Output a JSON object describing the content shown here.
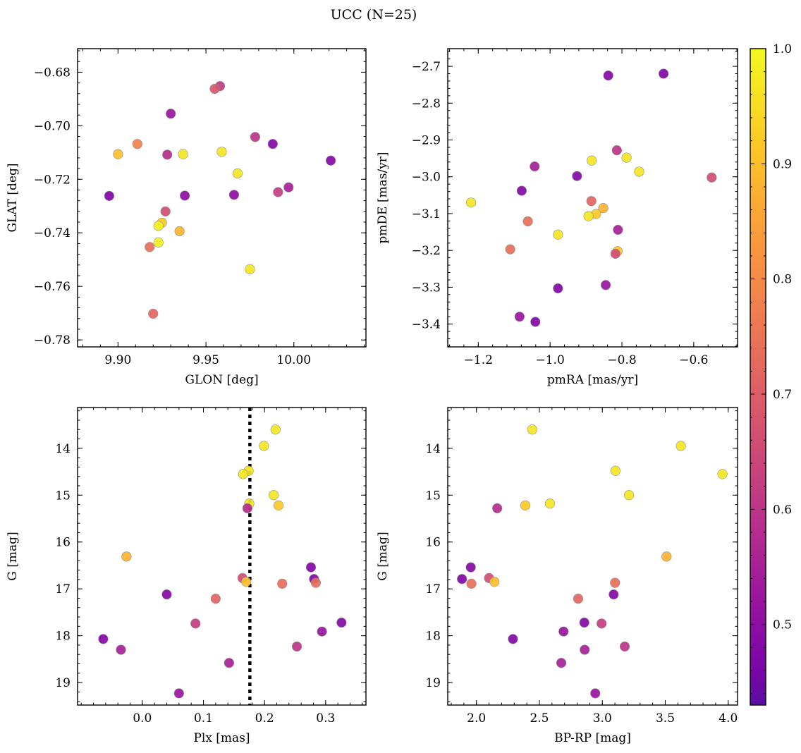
{
  "figure": {
    "title": "UCC (N=25)"
  },
  "chart_data": [
    {
      "type": "scatter",
      "xlabel": "GLON [deg]",
      "ylabel": "GLAT [deg]",
      "xlim": [
        9.877,
        10.041
      ],
      "ylim": [
        -0.7826,
        -0.6712
      ],
      "xticks": [
        9.9,
        9.95,
        10.0
      ],
      "xtick_labels": [
        "9.90",
        "9.95",
        "10.00"
      ],
      "yticks": [
        -0.68,
        -0.7,
        -0.72,
        -0.74,
        -0.76,
        -0.78
      ],
      "ytick_labels": [
        "−0.68",
        "−0.70",
        "−0.72",
        "−0.74",
        "−0.76",
        "−0.78"
      ],
      "y_inverted": false,
      "points": [
        {
          "x": 9.958,
          "y": -0.6852,
          "c": 0.62
        },
        {
          "x": 9.955,
          "y": -0.6862,
          "c": 0.68
        },
        {
          "x": 9.93,
          "y": -0.6955,
          "c": 0.52
        },
        {
          "x": 9.978,
          "y": -0.7042,
          "c": 0.6
        },
        {
          "x": 9.911,
          "y": -0.7068,
          "c": 0.78
        },
        {
          "x": 9.988,
          "y": -0.7068,
          "c": 0.48
        },
        {
          "x": 9.9,
          "y": -0.7106,
          "c": 0.9
        },
        {
          "x": 9.928,
          "y": -0.7108,
          "c": 0.58
        },
        {
          "x": 9.937,
          "y": -0.7106,
          "c": 0.97
        },
        {
          "x": 9.959,
          "y": -0.7097,
          "c": 0.97
        },
        {
          "x": 10.021,
          "y": -0.713,
          "c": 0.48
        },
        {
          "x": 9.968,
          "y": -0.7178,
          "c": 0.97
        },
        {
          "x": 9.997,
          "y": -0.723,
          "c": 0.55
        },
        {
          "x": 9.991,
          "y": -0.7248,
          "c": 0.62
        },
        {
          "x": 9.895,
          "y": -0.7262,
          "c": 0.47
        },
        {
          "x": 9.938,
          "y": -0.7261,
          "c": 0.5
        },
        {
          "x": 9.966,
          "y": -0.7258,
          "c": 0.5
        },
        {
          "x": 9.927,
          "y": -0.732,
          "c": 0.66
        },
        {
          "x": 9.925,
          "y": -0.7362,
          "c": 0.92
        },
        {
          "x": 9.923,
          "y": -0.7374,
          "c": 0.99
        },
        {
          "x": 9.935,
          "y": -0.7394,
          "c": 0.88
        },
        {
          "x": 9.923,
          "y": -0.7436,
          "c": 0.99
        },
        {
          "x": 9.918,
          "y": -0.7453,
          "c": 0.74
        },
        {
          "x": 9.975,
          "y": -0.7536,
          "c": 0.97
        },
        {
          "x": 9.92,
          "y": -0.7702,
          "c": 0.72
        }
      ]
    },
    {
      "type": "scatter",
      "xlabel": "pmRA [mas/yr]",
      "ylabel": "pmDE [mas/yr]",
      "xlim": [
        -1.285,
        -0.478
      ],
      "ylim": [
        -3.462,
        -2.652
      ],
      "xticks": [
        -1.2,
        -1.0,
        -0.8,
        -0.6
      ],
      "xtick_labels": [
        "−1.2",
        "−1.0",
        "−0.8",
        "−0.6"
      ],
      "yticks": [
        -2.7,
        -2.8,
        -2.9,
        -3.0,
        -3.1,
        -3.2,
        -3.3,
        -3.4
      ],
      "ytick_labels": [
        "−2.7",
        "−2.8",
        "−2.9",
        "−3.0",
        "−3.1",
        "−3.2",
        "−3.3",
        "−3.4"
      ],
      "y_inverted": false,
      "points": [
        {
          "x": -0.684,
          "y": -2.72,
          "c": 0.48
        },
        {
          "x": -0.838,
          "y": -2.725,
          "c": 0.48
        },
        {
          "x": -0.814,
          "y": -2.928,
          "c": 0.6
        },
        {
          "x": -0.787,
          "y": -2.948,
          "c": 0.97
        },
        {
          "x": -0.884,
          "y": -2.956,
          "c": 0.97
        },
        {
          "x": -1.043,
          "y": -2.972,
          "c": 0.55
        },
        {
          "x": -0.752,
          "y": -2.986,
          "c": 0.97
        },
        {
          "x": -0.925,
          "y": -2.998,
          "c": 0.48
        },
        {
          "x": -0.55,
          "y": -3.002,
          "c": 0.66
        },
        {
          "x": -1.079,
          "y": -3.038,
          "c": 0.48
        },
        {
          "x": -1.22,
          "y": -3.07,
          "c": 0.97
        },
        {
          "x": -0.885,
          "y": -3.066,
          "c": 0.72
        },
        {
          "x": -0.852,
          "y": -3.085,
          "c": 0.88
        },
        {
          "x": -0.872,
          "y": -3.101,
          "c": 0.92
        },
        {
          "x": -0.893,
          "y": -3.107,
          "c": 0.97
        },
        {
          "x": -1.062,
          "y": -3.121,
          "c": 0.74
        },
        {
          "x": -0.811,
          "y": -3.144,
          "c": 0.55
        },
        {
          "x": -0.978,
          "y": -3.157,
          "c": 0.97
        },
        {
          "x": -1.111,
          "y": -3.197,
          "c": 0.74
        },
        {
          "x": -0.812,
          "y": -3.202,
          "c": 0.92
        },
        {
          "x": -0.818,
          "y": -3.209,
          "c": 0.66
        },
        {
          "x": -0.845,
          "y": -3.294,
          "c": 0.52
        },
        {
          "x": -0.978,
          "y": -3.303,
          "c": 0.48
        },
        {
          "x": -1.085,
          "y": -3.38,
          "c": 0.52
        },
        {
          "x": -1.041,
          "y": -3.394,
          "c": 0.48
        }
      ]
    },
    {
      "type": "scatter",
      "xlabel": "Plx [mas]",
      "ylabel": "G [mag]",
      "xlim": [
        -0.106,
        0.366
      ],
      "ylim": [
        19.48,
        13.13
      ],
      "xticks": [
        0.0,
        0.1,
        0.2,
        0.3
      ],
      "xtick_labels": [
        "0.0",
        "0.1",
        "0.2",
        "0.3"
      ],
      "yticks": [
        14,
        15,
        16,
        17,
        18,
        19
      ],
      "ytick_labels": [
        "14",
        "15",
        "16",
        "17",
        "18",
        "19"
      ],
      "y_inverted": true,
      "vline": 0.176,
      "points": [
        {
          "x": 0.218,
          "y": 13.6,
          "c": 0.97
        },
        {
          "x": 0.199,
          "y": 13.95,
          "c": 0.97
        },
        {
          "x": 0.174,
          "y": 14.48,
          "c": 0.97
        },
        {
          "x": 0.165,
          "y": 14.55,
          "c": 0.97
        },
        {
          "x": 0.215,
          "y": 15.0,
          "c": 0.97
        },
        {
          "x": 0.175,
          "y": 15.18,
          "c": 0.97
        },
        {
          "x": 0.223,
          "y": 15.22,
          "c": 0.92
        },
        {
          "x": 0.172,
          "y": 15.28,
          "c": 0.58
        },
        {
          "x": -0.026,
          "y": 16.31,
          "c": 0.88
        },
        {
          "x": 0.276,
          "y": 16.54,
          "c": 0.48
        },
        {
          "x": 0.164,
          "y": 16.77,
          "c": 0.66
        },
        {
          "x": 0.281,
          "y": 16.79,
          "c": 0.48
        },
        {
          "x": 0.17,
          "y": 16.85,
          "c": 0.9
        },
        {
          "x": 0.284,
          "y": 16.87,
          "c": 0.74
        },
        {
          "x": 0.229,
          "y": 16.89,
          "c": 0.74
        },
        {
          "x": 0.04,
          "y": 17.12,
          "c": 0.48
        },
        {
          "x": 0.12,
          "y": 17.21,
          "c": 0.72
        },
        {
          "x": 0.326,
          "y": 17.72,
          "c": 0.48
        },
        {
          "x": 0.087,
          "y": 17.74,
          "c": 0.62
        },
        {
          "x": 0.294,
          "y": 17.91,
          "c": 0.52
        },
        {
          "x": -0.064,
          "y": 18.07,
          "c": 0.48
        },
        {
          "x": 0.253,
          "y": 18.23,
          "c": 0.6
        },
        {
          "x": -0.035,
          "y": 18.3,
          "c": 0.55
        },
        {
          "x": 0.142,
          "y": 18.58,
          "c": 0.55
        },
        {
          "x": 0.06,
          "y": 19.23,
          "c": 0.52
        }
      ]
    },
    {
      "type": "scatter",
      "xlabel": "BP-RP [mag]",
      "ylabel": "G [mag]",
      "xlim": [
        1.772,
        4.074
      ],
      "ylim": [
        19.48,
        13.13
      ],
      "xticks": [
        2.0,
        2.5,
        3.0,
        3.5,
        4.0
      ],
      "xtick_labels": [
        "2.0",
        "2.5",
        "3.0",
        "3.5",
        "4.0"
      ],
      "yticks": [
        14,
        15,
        16,
        17,
        18,
        19
      ],
      "ytick_labels": [
        "14",
        "15",
        "16",
        "17",
        "18",
        "19"
      ],
      "y_inverted": true,
      "points": [
        {
          "x": 2.443,
          "y": 13.6,
          "c": 0.97
        },
        {
          "x": 3.624,
          "y": 13.95,
          "c": 0.97
        },
        {
          "x": 3.104,
          "y": 14.48,
          "c": 0.97
        },
        {
          "x": 3.954,
          "y": 14.55,
          "c": 0.97
        },
        {
          "x": 3.212,
          "y": 15.0,
          "c": 0.97
        },
        {
          "x": 2.584,
          "y": 15.18,
          "c": 0.97
        },
        {
          "x": 2.388,
          "y": 15.22,
          "c": 0.92
        },
        {
          "x": 2.165,
          "y": 15.28,
          "c": 0.58
        },
        {
          "x": 3.51,
          "y": 16.31,
          "c": 0.88
        },
        {
          "x": 1.955,
          "y": 16.54,
          "c": 0.48
        },
        {
          "x": 2.1,
          "y": 16.77,
          "c": 0.66
        },
        {
          "x": 1.885,
          "y": 16.79,
          "c": 0.48
        },
        {
          "x": 2.143,
          "y": 16.85,
          "c": 0.9
        },
        {
          "x": 3.101,
          "y": 16.87,
          "c": 0.74
        },
        {
          "x": 1.96,
          "y": 16.89,
          "c": 0.74
        },
        {
          "x": 3.09,
          "y": 17.12,
          "c": 0.48
        },
        {
          "x": 2.808,
          "y": 17.21,
          "c": 0.72
        },
        {
          "x": 2.857,
          "y": 17.72,
          "c": 0.48
        },
        {
          "x": 2.994,
          "y": 17.74,
          "c": 0.62
        },
        {
          "x": 2.692,
          "y": 17.91,
          "c": 0.52
        },
        {
          "x": 2.29,
          "y": 18.07,
          "c": 0.48
        },
        {
          "x": 3.178,
          "y": 18.23,
          "c": 0.6
        },
        {
          "x": 2.86,
          "y": 18.3,
          "c": 0.55
        },
        {
          "x": 2.674,
          "y": 18.58,
          "c": 0.55
        },
        {
          "x": 2.944,
          "y": 19.23,
          "c": 0.52
        }
      ]
    }
  ],
  "colorbar": {
    "colormap": "plasma",
    "range": [
      0.43,
      1.0
    ],
    "ticks": [
      0.5,
      0.6,
      0.7,
      0.8,
      0.9,
      1.0
    ],
    "tick_labels": [
      "0.5",
      "0.6",
      "0.7",
      "0.8",
      "0.9",
      "1.0"
    ]
  }
}
